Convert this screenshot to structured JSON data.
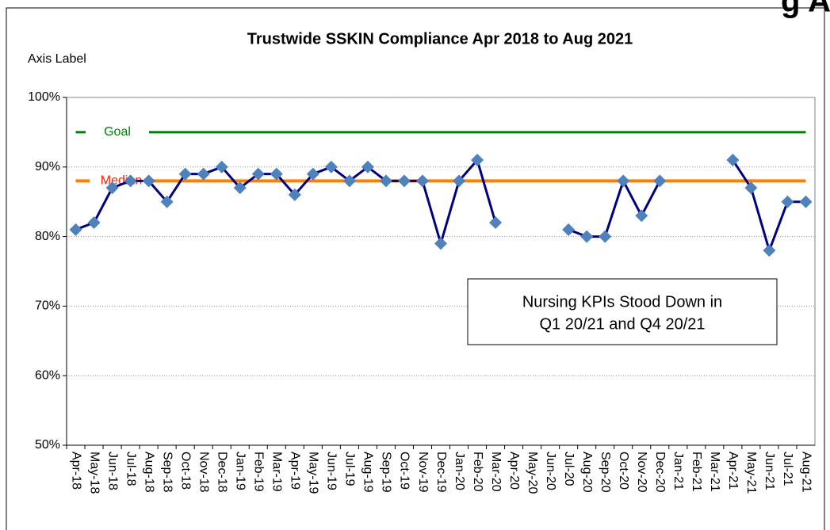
{
  "chart_data": {
    "type": "line",
    "page_heading_fragment": "g Ap",
    "title": "Trustwide SSKIN Compliance Apr 2018 to Aug 2021",
    "y_axis_label": "Axis Label",
    "annotation": [
      "Nursing KPIs Stood Down in",
      "Q1 20/21 and Q4 20/21"
    ],
    "categories": [
      "Apr-18",
      "May-18",
      "Jun-18",
      "Jul-18",
      "Aug-18",
      "Sep-18",
      "Oct-18",
      "Nov-18",
      "Dec-18",
      "Jan-19",
      "Feb-19",
      "Mar-19",
      "Apr-19",
      "May-19",
      "Jun-19",
      "Jul-19",
      "Aug-19",
      "Sep-19",
      "Oct-19",
      "Nov-19",
      "Dec-19",
      "Jan-20",
      "Feb-20",
      "Mar-20",
      "Apr-20",
      "May-20",
      "Jun-20",
      "Jul-20",
      "Aug-20",
      "Sep-20",
      "Oct-20",
      "Nov-20",
      "Dec-20",
      "Jan-21",
      "Feb-21",
      "Mar-21",
      "Apr-21",
      "May-21",
      "Jun-21",
      "Jul-21",
      "Aug-21"
    ],
    "series": [
      {
        "color": "#000080",
        "marker_color": "#4f81bd",
        "values": [
          81,
          82,
          87,
          88,
          88,
          85,
          89,
          89,
          90,
          87,
          89,
          89,
          86,
          89,
          90,
          88,
          90,
          88,
          88,
          88,
          79,
          88,
          91,
          82,
          null,
          null,
          null,
          81,
          80,
          80,
          88,
          83,
          88,
          null,
          null,
          null,
          91,
          87,
          78,
          85,
          85
        ]
      },
      {
        "name": "Goal",
        "color": "#008000",
        "label_color": "#008000",
        "values": [
          95,
          95,
          95,
          95,
          95,
          95,
          95,
          95,
          95,
          95,
          95,
          95,
          95,
          95,
          95,
          95,
          95,
          95,
          95,
          95,
          95,
          95,
          95,
          95,
          95,
          95,
          95,
          95,
          95,
          95,
          95,
          95,
          95,
          95,
          95,
          95,
          95,
          95,
          95,
          95,
          95
        ]
      },
      {
        "name": "Median",
        "color": "#ff8000",
        "label_color": "#ff2000",
        "values": [
          88,
          88,
          88,
          88,
          88,
          88,
          88,
          88,
          88,
          88,
          88,
          88,
          88,
          88,
          88,
          88,
          88,
          88,
          88,
          88,
          88,
          88,
          88,
          88,
          88,
          88,
          88,
          88,
          88,
          88,
          88,
          88,
          88,
          88,
          88,
          88,
          88,
          88,
          88,
          88,
          88
        ]
      }
    ],
    "ylim": [
      50,
      100
    ],
    "yticks": [
      {
        "value": 50,
        "label": "50%"
      },
      {
        "value": 60,
        "label": "60%"
      },
      {
        "value": 70,
        "label": "70%"
      },
      {
        "value": 80,
        "label": "80%"
      },
      {
        "value": 90,
        "label": "90%"
      },
      {
        "value": 100,
        "label": "100%"
      }
    ],
    "grid": true
  }
}
